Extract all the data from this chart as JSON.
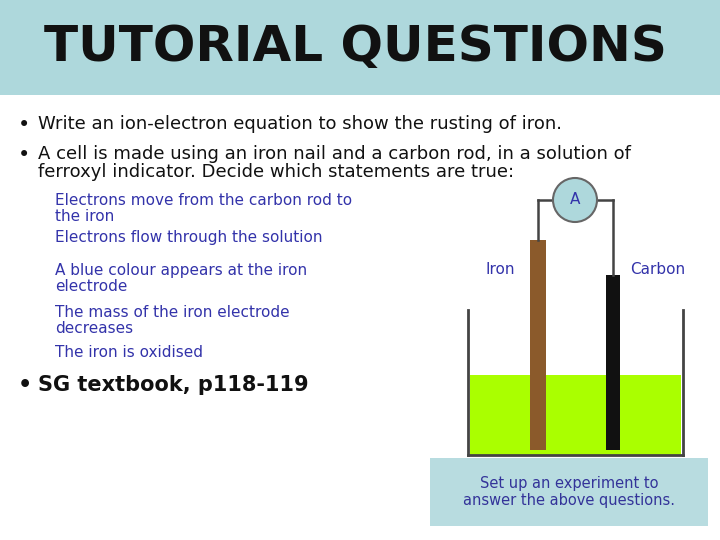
{
  "title": "TUTORIAL QUESTIONS",
  "title_bg": "#aed8dc",
  "title_color": "#111111",
  "bg_color": "#ffffff",
  "bullet1": "Write an ion-electron equation to show the rusting of iron.",
  "bullet2_line1": "A cell is made using an iron nail and a carbon rod, in a solution of",
  "bullet2_line2": "ferroxyl indicator. Decide which statements are true:",
  "statements": [
    [
      "Electrons move from the carbon rod to",
      "the iron"
    ],
    [
      "Electrons flow through the solution"
    ],
    [
      "A blue colour appears at the iron",
      "electrode"
    ],
    [
      "The mass of the iron electrode",
      "decreases"
    ],
    [
      "The iron is oxidised"
    ]
  ],
  "statement_color": "#3333aa",
  "bullet3": "SG textbook, p118-119",
  "note_text": "Set up an experiment to\nanswer the above questions.",
  "note_bg": "#b8dce0",
  "note_color": "#333399",
  "iron_label": "Iron",
  "carbon_label": "Carbon",
  "ammeter_label": "A",
  "iron_color": "#8B5A2B",
  "carbon_color": "#111111",
  "solution_color": "#aaff00",
  "beaker_line_color": "#444444",
  "ammeter_circle_color": "#aed8dc",
  "wire_color": "#444444",
  "text_color": "#111111",
  "bullet_font_size": 13,
  "statement_font_size": 11,
  "title_font_size": 36
}
